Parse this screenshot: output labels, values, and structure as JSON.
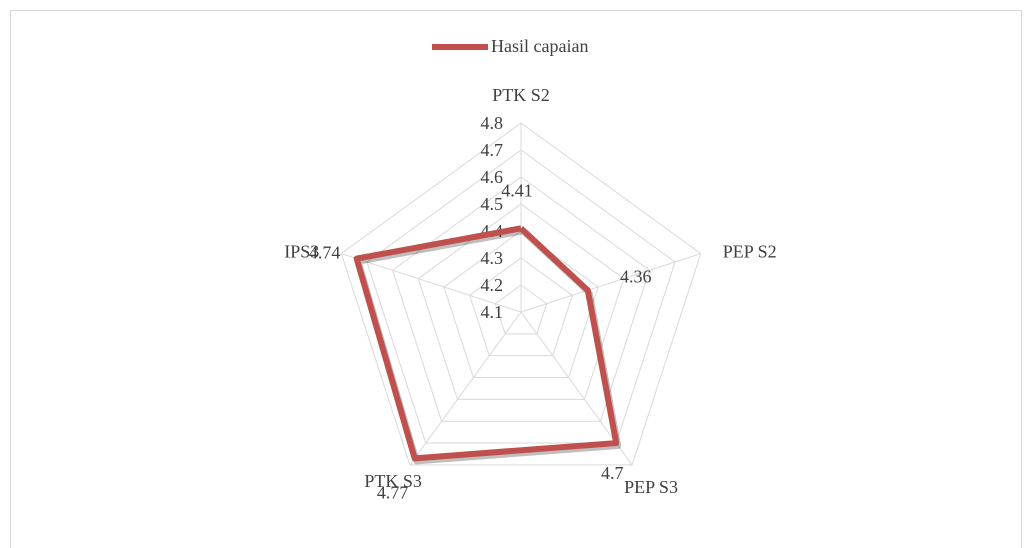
{
  "chart_data": {
    "type": "radar",
    "categories": [
      "PTK S2",
      "PEP S2",
      "PEP S3",
      "PTK S3",
      "IPS3"
    ],
    "series": [
      {
        "name": "Hasil capaian",
        "color": "#c0504d",
        "values": [
          4.41,
          4.36,
          4.7,
          4.77,
          4.74
        ]
      }
    ],
    "ylim": [
      4.1,
      4.8
    ],
    "yticks": [
      4.1,
      4.2,
      4.3,
      4.4,
      4.5,
      4.6,
      4.7,
      4.8
    ],
    "grid": true,
    "legend": "top"
  }
}
